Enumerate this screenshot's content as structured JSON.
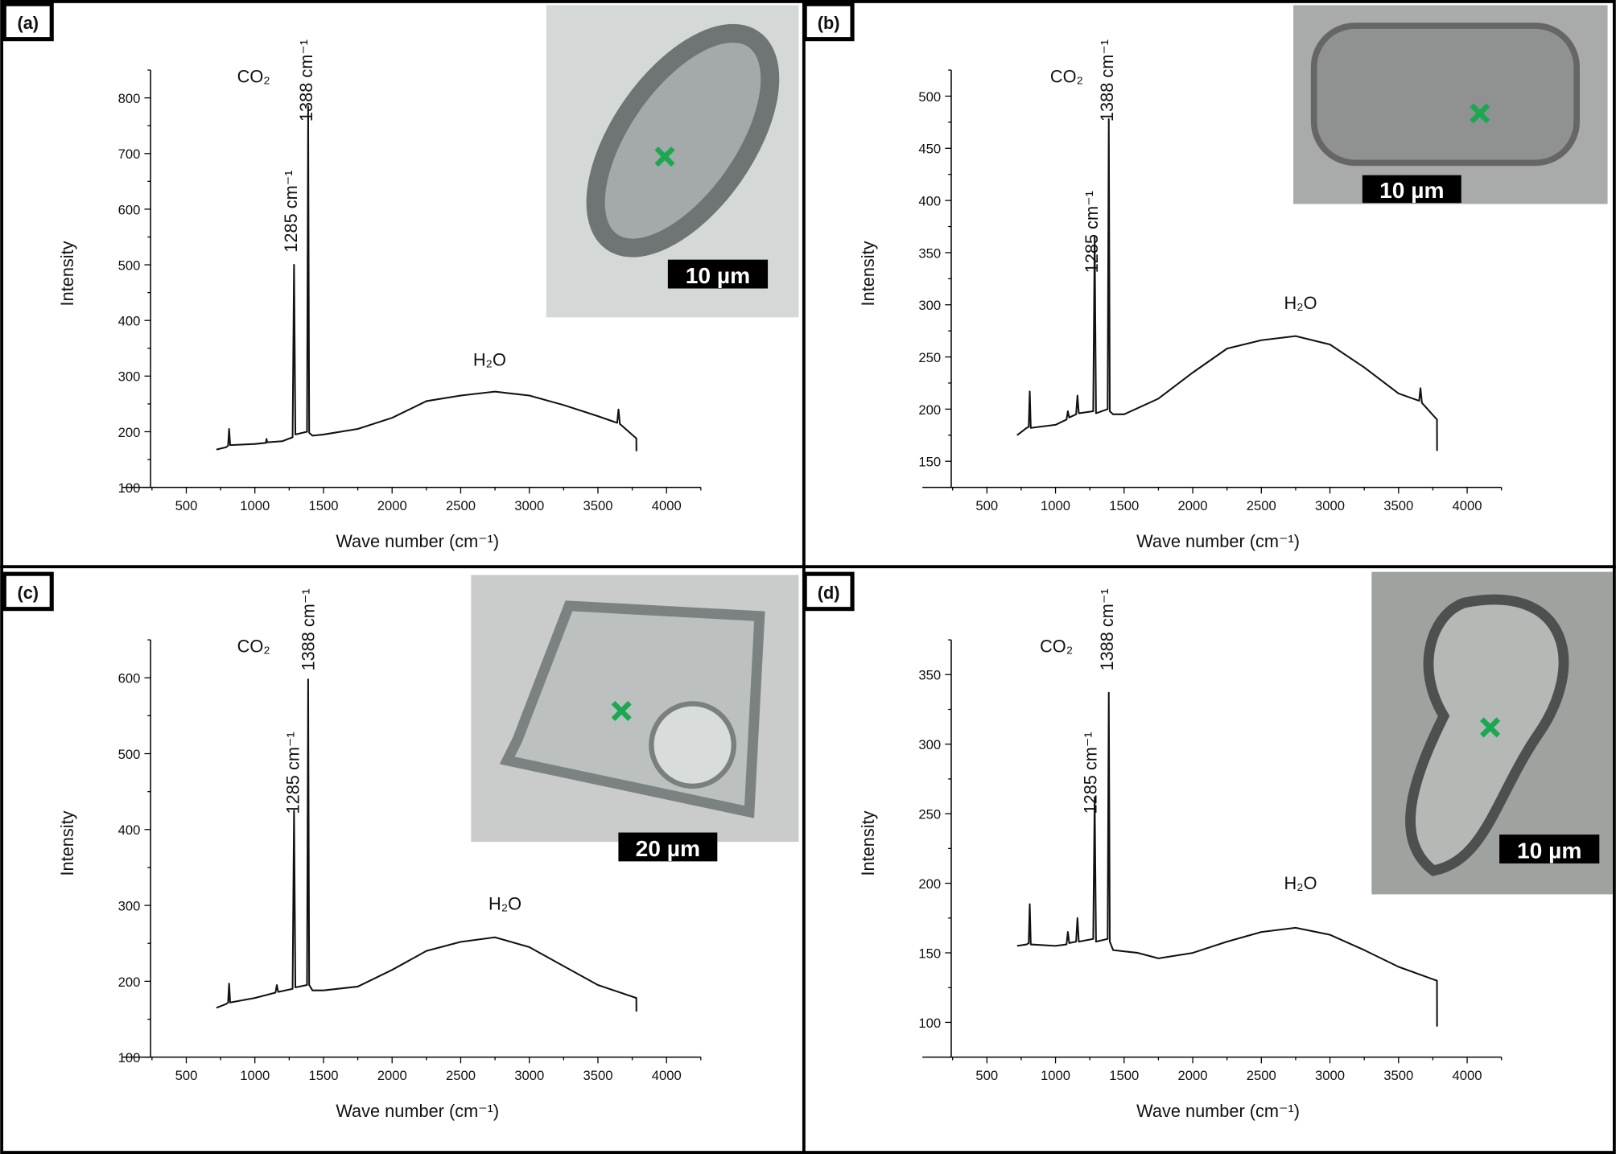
{
  "chart_data": [
    {
      "type": "line",
      "panel_label": "(a)",
      "xlabel": "Wave number (cm⁻¹)",
      "ylabel": "Intensity",
      "xlim": [
        240,
        4250
      ],
      "ylim": [
        100,
        850
      ],
      "xticks": [
        500,
        1000,
        1500,
        2000,
        2500,
        3000,
        3500,
        4000
      ],
      "yticks": [
        100,
        200,
        300,
        400,
        500,
        600,
        700,
        800
      ],
      "annotations": {
        "co2": "CO₂",
        "peak1388": "1388 cm⁻¹",
        "peak1285": "1285 cm⁻¹",
        "h2o": "H₂O"
      },
      "x": [
        720,
        790,
        805,
        812,
        820,
        1000,
        1080,
        1085,
        1090,
        1200,
        1275,
        1285,
        1295,
        1380,
        1388,
        1396,
        1420,
        1500,
        1750,
        2000,
        2250,
        2500,
        2750,
        3000,
        3250,
        3500,
        3640,
        3650,
        3660,
        3780,
        3781
      ],
      "y": [
        168,
        172,
        175,
        205,
        176,
        178,
        180,
        187,
        181,
        183,
        190,
        500,
        195,
        200,
        785,
        198,
        193,
        195,
        205,
        225,
        255,
        265,
        272,
        265,
        248,
        228,
        216,
        240,
        214,
        188,
        165
      ],
      "inset": {
        "scale_bar": "10 µm",
        "background": "#d4d8d6"
      }
    },
    {
      "type": "line",
      "panel_label": "(b)",
      "xlabel": "Wave number (cm⁻¹)",
      "ylabel": "Intensity",
      "xlim": [
        240,
        4250
      ],
      "ylim": [
        125,
        525
      ],
      "xticks": [
        500,
        1000,
        1500,
        2000,
        2500,
        3000,
        3500,
        4000
      ],
      "yticks": [
        150,
        200,
        250,
        300,
        350,
        400,
        450,
        500
      ],
      "annotations": {
        "co2": "CO₂",
        "peak1388": "1388 cm⁻¹",
        "peak1285": "1285 cm⁻¹",
        "h2o": "H₂O"
      },
      "x": [
        720,
        790,
        805,
        812,
        820,
        1000,
        1080,
        1090,
        1100,
        1150,
        1160,
        1170,
        1275,
        1285,
        1295,
        1380,
        1388,
        1396,
        1420,
        1500,
        1750,
        2000,
        2250,
        2500,
        2750,
        3000,
        3250,
        3500,
        3650,
        3660,
        3670,
        3780,
        3781
      ],
      "y": [
        175,
        182,
        183,
        217,
        182,
        185,
        190,
        198,
        192,
        195,
        213,
        196,
        198,
        365,
        196,
        200,
        478,
        198,
        195,
        195,
        210,
        235,
        258,
        266,
        270,
        262,
        240,
        215,
        208,
        220,
        206,
        190,
        160
      ],
      "inset": {
        "scale_bar": "10 µm",
        "background": "#a9abaa"
      }
    },
    {
      "type": "line",
      "panel_label": "(c)",
      "xlabel": "Wave number (cm⁻¹)",
      "ylabel": "Intensity",
      "xlim": [
        240,
        4250
      ],
      "ylim": [
        100,
        650
      ],
      "xticks": [
        500,
        1000,
        1500,
        2000,
        2500,
        3000,
        3500,
        4000
      ],
      "yticks": [
        100,
        200,
        300,
        400,
        500,
        600
      ],
      "annotations": {
        "co2": "CO₂",
        "peak1388": "1388 cm⁻¹",
        "peak1285": "1285 cm⁻¹",
        "h2o": "H₂O"
      },
      "x": [
        720,
        790,
        805,
        812,
        820,
        1000,
        1150,
        1160,
        1170,
        1275,
        1285,
        1295,
        1380,
        1388,
        1396,
        1420,
        1500,
        1750,
        2000,
        2250,
        2500,
        2750,
        3000,
        3250,
        3500,
        3780,
        3781
      ],
      "y": [
        165,
        170,
        172,
        197,
        172,
        178,
        185,
        195,
        186,
        190,
        425,
        192,
        195,
        598,
        195,
        188,
        188,
        193,
        215,
        240,
        252,
        258,
        245,
        220,
        195,
        178,
        160
      ],
      "inset": {
        "scale_bar": "20 µm",
        "background": "#c9cccb"
      }
    },
    {
      "type": "line",
      "panel_label": "(d)",
      "xlabel": "Wave number (cm⁻¹)",
      "ylabel": "Intensity",
      "xlim": [
        240,
        4250
      ],
      "ylim": [
        75,
        375
      ],
      "xticks": [
        500,
        1000,
        1500,
        2000,
        2500,
        3000,
        3500,
        4000
      ],
      "yticks": [
        100,
        150,
        200,
        250,
        300,
        350
      ],
      "annotations": {
        "co2": "CO₂",
        "peak1388": "1388 cm⁻¹",
        "peak1285": "1285 cm⁻¹",
        "h2o": "H₂O"
      },
      "x": [
        720,
        790,
        805,
        812,
        820,
        1000,
        1080,
        1090,
        1100,
        1150,
        1160,
        1170,
        1275,
        1285,
        1295,
        1380,
        1388,
        1396,
        1420,
        1600,
        1750,
        2000,
        2250,
        2500,
        2750,
        3000,
        3250,
        3500,
        3780,
        3781
      ],
      "y": [
        155,
        156,
        157,
        185,
        156,
        155,
        156,
        165,
        157,
        158,
        175,
        158,
        160,
        262,
        158,
        160,
        337,
        158,
        152,
        150,
        146,
        150,
        158,
        165,
        168,
        163,
        152,
        140,
        130,
        97
      ],
      "inset": {
        "scale_bar": "10 µm",
        "background": "#9ea39f"
      }
    }
  ],
  "colors": {
    "line": "#111111",
    "marker": "#1aa850",
    "frame": "#000000"
  }
}
